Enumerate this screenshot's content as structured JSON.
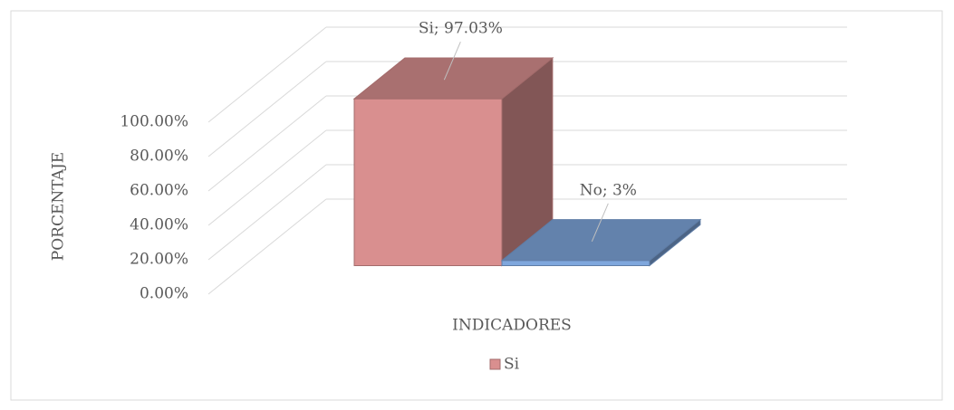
{
  "chart_data": {
    "type": "bar",
    "y_label": "PORCENTAJE",
    "x_label": "INDICADORES",
    "categories": [
      "Si",
      "No"
    ],
    "values": [
      97.03,
      3
    ],
    "value_labels": [
      "Si; 97.03%",
      "No; 3%"
    ],
    "colors": [
      "#d98f8f",
      "#7fa7dd"
    ],
    "ylim": [
      0,
      100
    ],
    "yticks": [
      {
        "value": 0,
        "label": "0.00%"
      },
      {
        "value": 20,
        "label": "20.00%"
      },
      {
        "value": 40,
        "label": "40.00%"
      },
      {
        "value": 60,
        "label": "60.00%"
      },
      {
        "value": 80,
        "label": "80.00%"
      },
      {
        "value": 100,
        "label": "100.00%"
      }
    ],
    "grid": true,
    "legend": "bottom"
  }
}
